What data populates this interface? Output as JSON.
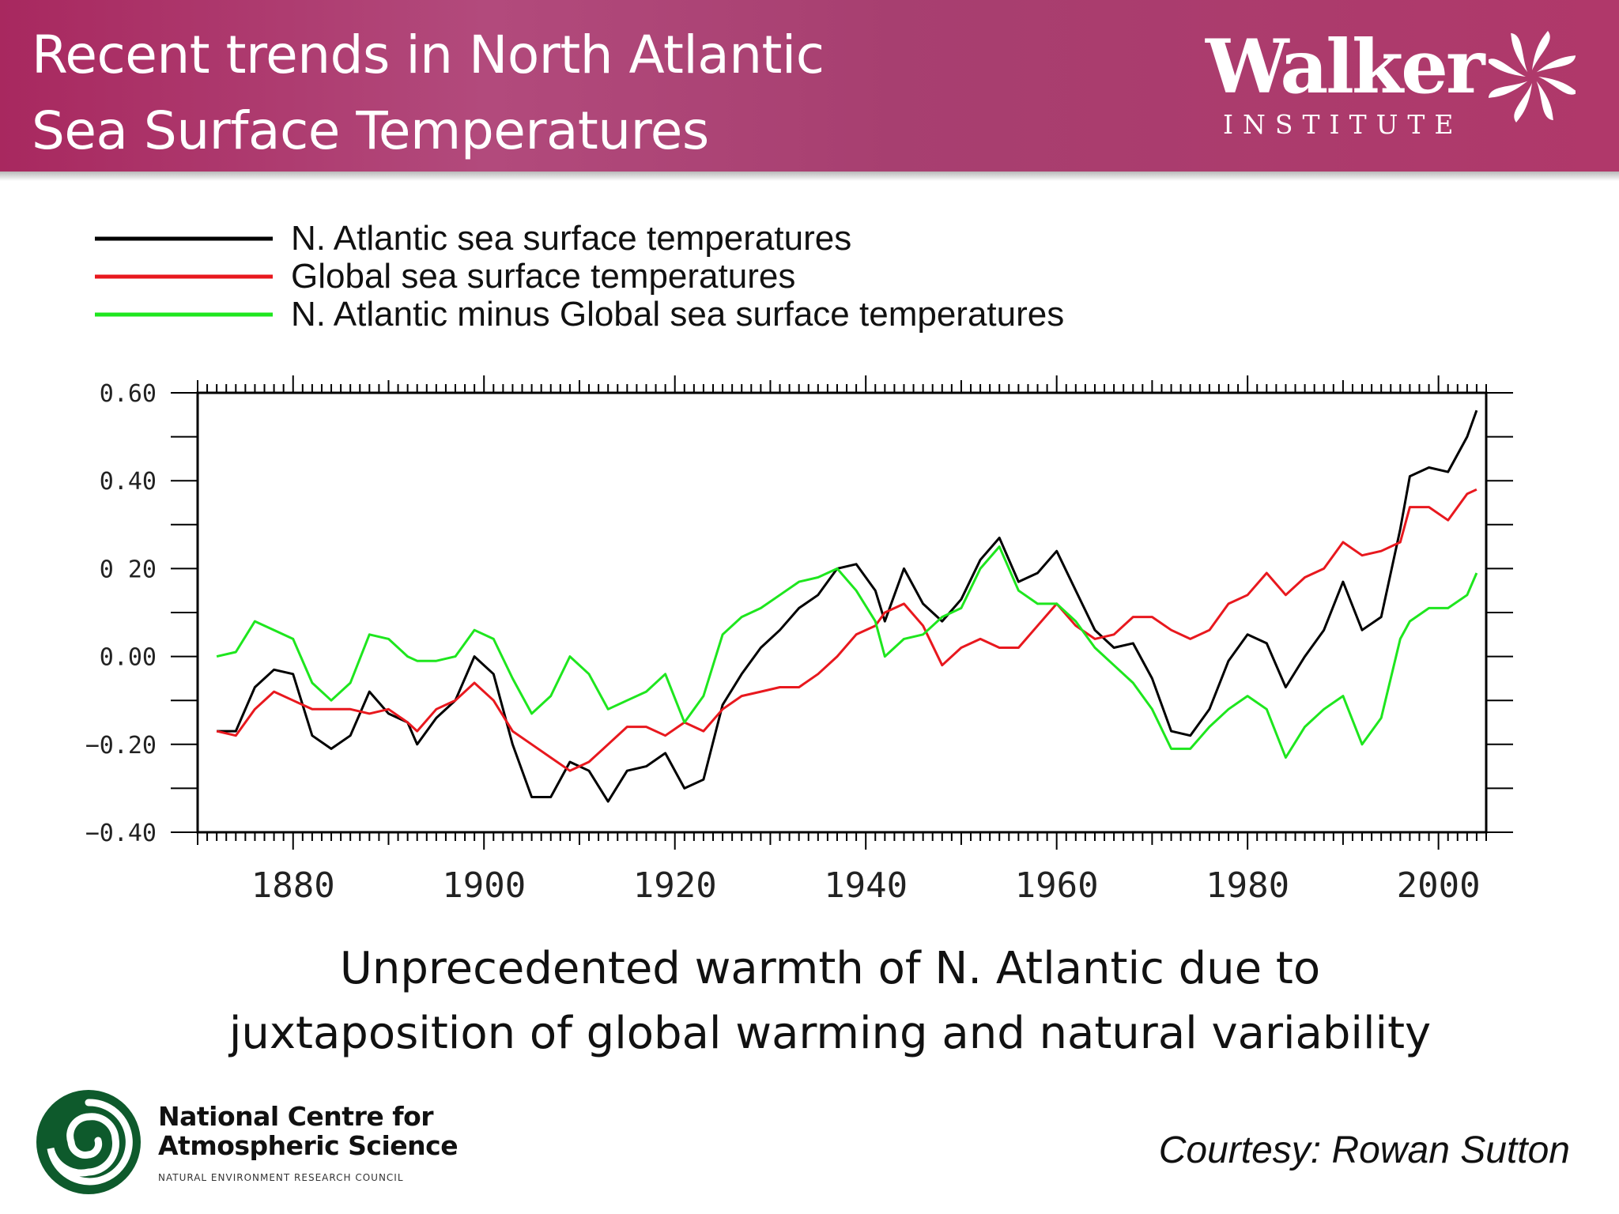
{
  "header": {
    "title_line1": "Recent trends in North Atlantic",
    "title_line2": "Sea Surface Temperatures",
    "logo_name": "Walker",
    "logo_sub": "INSTITUTE",
    "logo_icon": "walker-swirl-icon"
  },
  "colors": {
    "header": "#a8285f",
    "n_atlantic": "#000000",
    "global": "#e8181e",
    "difference": "#1ee61e",
    "ncas_green": "#0e5a2c"
  },
  "chart_data": {
    "type": "line",
    "title": "",
    "xlabel": "",
    "ylabel": "",
    "xlim": [
      1870,
      2005
    ],
    "ylim": [
      -0.4,
      0.6
    ],
    "x_ticks": [
      "1880",
      "1900",
      "1920",
      "1940",
      "1960",
      "1980",
      "2000"
    ],
    "x_tick_values": [
      1880,
      1900,
      1920,
      1940,
      1960,
      1980,
      2000
    ],
    "y_ticks": [
      "0.60",
      "0.40",
      "0 20",
      "0.00",
      "−0.20",
      "−0.40"
    ],
    "y_tick_values": [
      0.6,
      0.4,
      0.2,
      0.0,
      -0.2,
      -0.4
    ],
    "grid": false,
    "legend_placement": "top-left, above plot",
    "series": [
      {
        "name": "N. Atlantic sea surface temperatures",
        "color": "#000000",
        "points": [
          [
            1872,
            -0.17
          ],
          [
            1874,
            -0.17
          ],
          [
            1876,
            -0.07
          ],
          [
            1878,
            -0.03
          ],
          [
            1880,
            -0.04
          ],
          [
            1882,
            -0.18
          ],
          [
            1884,
            -0.21
          ],
          [
            1886,
            -0.18
          ],
          [
            1888,
            -0.08
          ],
          [
            1890,
            -0.13
          ],
          [
            1892,
            -0.15
          ],
          [
            1893,
            -0.2
          ],
          [
            1895,
            -0.14
          ],
          [
            1897,
            -0.1
          ],
          [
            1899,
            0.0
          ],
          [
            1901,
            -0.04
          ],
          [
            1903,
            -0.2
          ],
          [
            1905,
            -0.32
          ],
          [
            1907,
            -0.32
          ],
          [
            1909,
            -0.24
          ],
          [
            1911,
            -0.26
          ],
          [
            1913,
            -0.33
          ],
          [
            1915,
            -0.26
          ],
          [
            1917,
            -0.25
          ],
          [
            1919,
            -0.22
          ],
          [
            1921,
            -0.3
          ],
          [
            1923,
            -0.28
          ],
          [
            1925,
            -0.11
          ],
          [
            1927,
            -0.04
          ],
          [
            1929,
            0.02
          ],
          [
            1931,
            0.06
          ],
          [
            1933,
            0.11
          ],
          [
            1935,
            0.14
          ],
          [
            1937,
            0.2
          ],
          [
            1939,
            0.21
          ],
          [
            1941,
            0.15
          ],
          [
            1942,
            0.08
          ],
          [
            1944,
            0.2
          ],
          [
            1946,
            0.12
          ],
          [
            1948,
            0.08
          ],
          [
            1950,
            0.13
          ],
          [
            1952,
            0.22
          ],
          [
            1954,
            0.27
          ],
          [
            1956,
            0.17
          ],
          [
            1958,
            0.19
          ],
          [
            1960,
            0.24
          ],
          [
            1962,
            0.15
          ],
          [
            1964,
            0.06
          ],
          [
            1966,
            0.02
          ],
          [
            1968,
            0.03
          ],
          [
            1970,
            -0.05
          ],
          [
            1972,
            -0.17
          ],
          [
            1974,
            -0.18
          ],
          [
            1976,
            -0.12
          ],
          [
            1978,
            -0.01
          ],
          [
            1980,
            0.05
          ],
          [
            1982,
            0.03
          ],
          [
            1984,
            -0.07
          ],
          [
            1986,
            0.0
          ],
          [
            1988,
            0.06
          ],
          [
            1990,
            0.17
          ],
          [
            1992,
            0.06
          ],
          [
            1994,
            0.09
          ],
          [
            1996,
            0.29
          ],
          [
            1997,
            0.41
          ],
          [
            1999,
            0.43
          ],
          [
            2001,
            0.42
          ],
          [
            2003,
            0.5
          ],
          [
            2004,
            0.56
          ]
        ]
      },
      {
        "name": "Global sea surface temperatures",
        "color": "#e8181e",
        "points": [
          [
            1872,
            -0.17
          ],
          [
            1874,
            -0.18
          ],
          [
            1876,
            -0.12
          ],
          [
            1878,
            -0.08
          ],
          [
            1880,
            -0.1
          ],
          [
            1882,
            -0.12
          ],
          [
            1884,
            -0.12
          ],
          [
            1886,
            -0.12
          ],
          [
            1888,
            -0.13
          ],
          [
            1890,
            -0.12
          ],
          [
            1892,
            -0.15
          ],
          [
            1893,
            -0.17
          ],
          [
            1895,
            -0.12
          ],
          [
            1897,
            -0.1
          ],
          [
            1899,
            -0.06
          ],
          [
            1901,
            -0.1
          ],
          [
            1903,
            -0.17
          ],
          [
            1905,
            -0.2
          ],
          [
            1907,
            -0.23
          ],
          [
            1909,
            -0.26
          ],
          [
            1911,
            -0.24
          ],
          [
            1913,
            -0.2
          ],
          [
            1915,
            -0.16
          ],
          [
            1917,
            -0.16
          ],
          [
            1919,
            -0.18
          ],
          [
            1921,
            -0.15
          ],
          [
            1923,
            -0.17
          ],
          [
            1925,
            -0.12
          ],
          [
            1927,
            -0.09
          ],
          [
            1929,
            -0.08
          ],
          [
            1931,
            -0.07
          ],
          [
            1933,
            -0.07
          ],
          [
            1935,
            -0.04
          ],
          [
            1937,
            0.0
          ],
          [
            1939,
            0.05
          ],
          [
            1941,
            0.07
          ],
          [
            1942,
            0.1
          ],
          [
            1944,
            0.12
          ],
          [
            1946,
            0.07
          ],
          [
            1948,
            -0.02
          ],
          [
            1950,
            0.02
          ],
          [
            1952,
            0.04
          ],
          [
            1954,
            0.02
          ],
          [
            1956,
            0.02
          ],
          [
            1958,
            0.07
          ],
          [
            1960,
            0.12
          ],
          [
            1962,
            0.07
          ],
          [
            1964,
            0.04
          ],
          [
            1966,
            0.05
          ],
          [
            1968,
            0.09
          ],
          [
            1970,
            0.09
          ],
          [
            1972,
            0.06
          ],
          [
            1974,
            0.04
          ],
          [
            1976,
            0.06
          ],
          [
            1978,
            0.12
          ],
          [
            1980,
            0.14
          ],
          [
            1982,
            0.19
          ],
          [
            1984,
            0.14
          ],
          [
            1986,
            0.18
          ],
          [
            1988,
            0.2
          ],
          [
            1990,
            0.26
          ],
          [
            1992,
            0.23
          ],
          [
            1994,
            0.24
          ],
          [
            1996,
            0.26
          ],
          [
            1997,
            0.34
          ],
          [
            1999,
            0.34
          ],
          [
            2001,
            0.31
          ],
          [
            2003,
            0.37
          ],
          [
            2004,
            0.38
          ]
        ]
      },
      {
        "name": "N. Atlantic minus Global sea surface temperatures",
        "color": "#1ee61e",
        "points": [
          [
            1872,
            0.0
          ],
          [
            1874,
            0.01
          ],
          [
            1876,
            0.08
          ],
          [
            1878,
            0.06
          ],
          [
            1880,
            0.04
          ],
          [
            1882,
            -0.06
          ],
          [
            1884,
            -0.1
          ],
          [
            1886,
            -0.06
          ],
          [
            1888,
            0.05
          ],
          [
            1890,
            0.04
          ],
          [
            1892,
            0.0
          ],
          [
            1893,
            -0.01
          ],
          [
            1895,
            -0.01
          ],
          [
            1897,
            0.0
          ],
          [
            1899,
            0.06
          ],
          [
            1901,
            0.04
          ],
          [
            1903,
            -0.05
          ],
          [
            1905,
            -0.13
          ],
          [
            1907,
            -0.09
          ],
          [
            1909,
            0.0
          ],
          [
            1911,
            -0.04
          ],
          [
            1913,
            -0.12
          ],
          [
            1915,
            -0.1
          ],
          [
            1917,
            -0.08
          ],
          [
            1919,
            -0.04
          ],
          [
            1921,
            -0.15
          ],
          [
            1923,
            -0.09
          ],
          [
            1925,
            0.05
          ],
          [
            1927,
            0.09
          ],
          [
            1929,
            0.11
          ],
          [
            1931,
            0.14
          ],
          [
            1933,
            0.17
          ],
          [
            1935,
            0.18
          ],
          [
            1937,
            0.2
          ],
          [
            1939,
            0.15
          ],
          [
            1941,
            0.08
          ],
          [
            1942,
            0.0
          ],
          [
            1944,
            0.04
          ],
          [
            1946,
            0.05
          ],
          [
            1948,
            0.09
          ],
          [
            1950,
            0.11
          ],
          [
            1952,
            0.2
          ],
          [
            1954,
            0.25
          ],
          [
            1956,
            0.15
          ],
          [
            1958,
            0.12
          ],
          [
            1960,
            0.12
          ],
          [
            1962,
            0.08
          ],
          [
            1964,
            0.02
          ],
          [
            1966,
            -0.02
          ],
          [
            1968,
            -0.06
          ],
          [
            1970,
            -0.12
          ],
          [
            1972,
            -0.21
          ],
          [
            1974,
            -0.21
          ],
          [
            1976,
            -0.16
          ],
          [
            1978,
            -0.12
          ],
          [
            1980,
            -0.09
          ],
          [
            1982,
            -0.12
          ],
          [
            1984,
            -0.23
          ],
          [
            1986,
            -0.16
          ],
          [
            1988,
            -0.12
          ],
          [
            1990,
            -0.09
          ],
          [
            1992,
            -0.2
          ],
          [
            1994,
            -0.14
          ],
          [
            1996,
            0.04
          ],
          [
            1997,
            0.08
          ],
          [
            1999,
            0.11
          ],
          [
            2001,
            0.11
          ],
          [
            2003,
            0.14
          ],
          [
            2004,
            0.19
          ]
        ]
      }
    ]
  },
  "subtitle_line1": "Unprecedented warmth of N. Atlantic due to",
  "subtitle_line2": "juxtaposition of global warming and natural variability",
  "ncas": {
    "line1": "National Centre for",
    "line2": "Atmospheric Science",
    "line3": "NATURAL ENVIRONMENT RESEARCH COUNCIL",
    "icon": "ncas-spiral-icon"
  },
  "courtesy": "Courtesy: Rowan Sutton"
}
